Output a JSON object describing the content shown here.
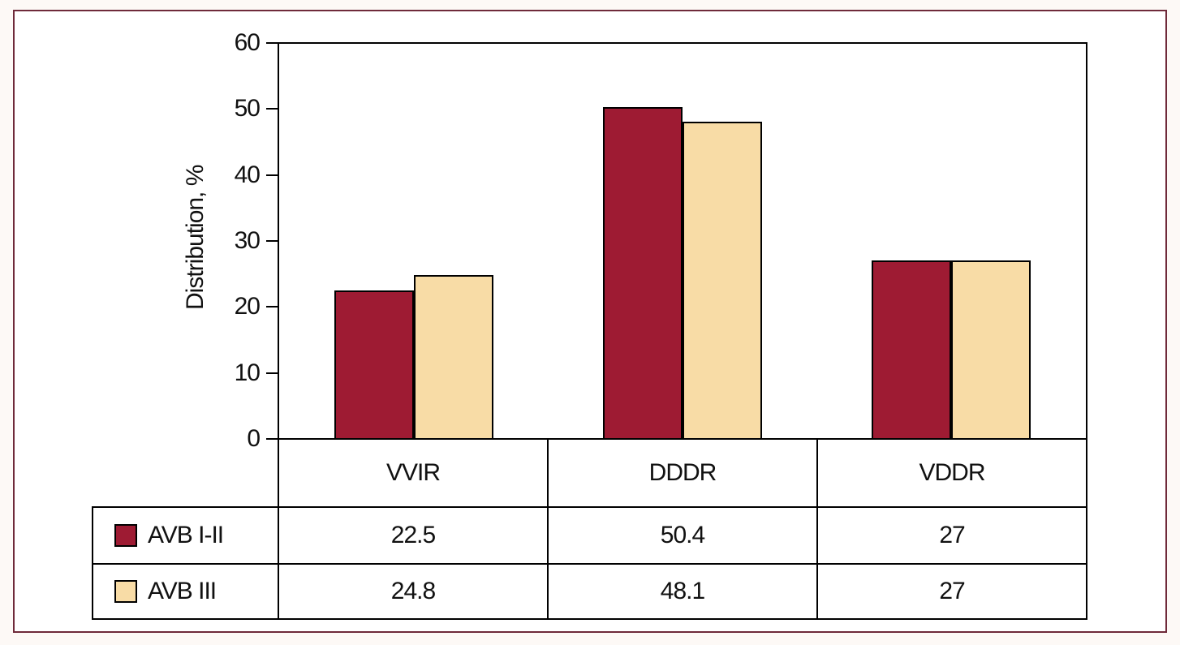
{
  "figure": {
    "frame_border_color": "#6F2A3A",
    "page_background": "#FDF9F6",
    "inner_background": "#FFFFFF",
    "axis_color": "#000000"
  },
  "chart_data": {
    "type": "bar",
    "title": "",
    "xlabel": "",
    "ylabel": "Distribution, %",
    "categories": [
      "VVIR",
      "DDDR",
      "VDDR"
    ],
    "series": [
      {
        "name": "AVB I-II",
        "color": "#9E1B33",
        "values": [
          22.5,
          50.4,
          27
        ]
      },
      {
        "name": "AVB III",
        "color": "#F8DCA6",
        "values": [
          24.8,
          48.1,
          27
        ]
      }
    ],
    "ylim": [
      0,
      60
    ],
    "yticks": [
      0,
      10,
      20,
      30,
      40,
      50,
      60
    ],
    "grid": false,
    "legend_position": "table-below",
    "bar_border_color": "#000000"
  }
}
